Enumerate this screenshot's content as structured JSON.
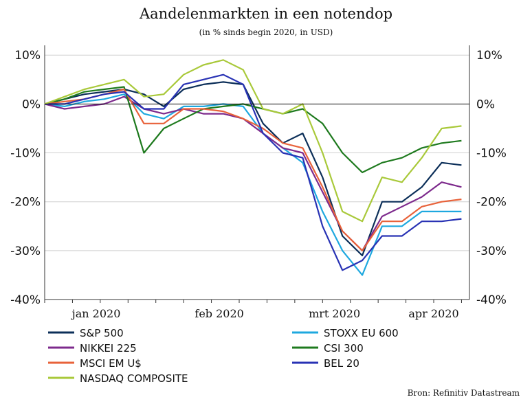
{
  "chart_data": {
    "type": "line",
    "title": "Aandelenmarkten in een notendop",
    "subtitle": "(in % sinds begin 2020, in USD)",
    "source": "Bron: Refinitiv Datastream",
    "ylim": [
      -40,
      12
    ],
    "yticks": [
      10,
      0,
      -10,
      -20,
      -30,
      -40
    ],
    "ytick_labels": [
      "10%",
      "0%",
      "-10%",
      "-20%",
      "-30%",
      "-40%"
    ],
    "xlim": [
      "2020-01-01",
      "2020-04-17"
    ],
    "xticks": [
      {
        "date": "2020-01-14",
        "label": "jan 2020"
      },
      {
        "date": "2020-02-14",
        "label": "feb 2020"
      },
      {
        "date": "2020-03-14",
        "label": "mrt 2020"
      },
      {
        "date": "2020-04-08",
        "label": "apr 2020"
      }
    ],
    "x": [
      "2020-01-01",
      "2020-01-06",
      "2020-01-11",
      "2020-01-16",
      "2020-01-21",
      "2020-01-26",
      "2020-01-31",
      "2020-02-05",
      "2020-02-10",
      "2020-02-15",
      "2020-02-20",
      "2020-02-25",
      "2020-03-01",
      "2020-03-06",
      "2020-03-11",
      "2020-03-16",
      "2020-03-21",
      "2020-03-26",
      "2020-03-31",
      "2020-04-05",
      "2020-04-10",
      "2020-04-15"
    ],
    "series": [
      {
        "name": "S&P 500",
        "color": "#0c2f59",
        "values": [
          0,
          1,
          2,
          2.5,
          3,
          2,
          -0.5,
          3,
          4,
          4.5,
          4,
          -4,
          -8,
          -6,
          -15,
          -27,
          -31,
          -20,
          -20,
          -17,
          -12,
          -12.5
        ]
      },
      {
        "name": "STOXX EU 600",
        "color": "#1ea8df",
        "values": [
          0,
          -0.5,
          0.5,
          1,
          2,
          -2,
          -3,
          -0.5,
          -0.5,
          0,
          -0.5,
          -6,
          -9,
          -12,
          -22,
          -30,
          -35,
          -25,
          -25,
          -22,
          -22,
          -22
        ]
      },
      {
        "name": "NIKKEI 225",
        "color": "#7d2a8c",
        "values": [
          0,
          -1,
          -0.5,
          0,
          1.5,
          -1,
          -2,
          -1,
          -2,
          -2,
          -3,
          -6,
          -9,
          -10,
          -18,
          -26,
          -30,
          -23,
          -21,
          -19,
          -16,
          -17
        ]
      },
      {
        "name": "CSI 300",
        "color": "#1e7a1e",
        "values": [
          0,
          1,
          2.5,
          3,
          3.5,
          -10,
          -5,
          -3,
          -1,
          -0.5,
          0,
          -1,
          -2,
          -1,
          -4,
          -10,
          -14,
          -12,
          -11,
          -9,
          -8,
          -7.5
        ]
      },
      {
        "name": "MSCI EM U$",
        "color": "#e8623a",
        "values": [
          0,
          0.5,
          1,
          2,
          3,
          -4,
          -4,
          -1,
          -1,
          -1.5,
          -3,
          -5,
          -8,
          -9,
          -17,
          -26,
          -30,
          -24,
          -24,
          -21,
          -20,
          -19.5
        ]
      },
      {
        "name": "BEL 20",
        "color": "#2832b4",
        "values": [
          0,
          0,
          1,
          2,
          2.5,
          -1,
          -1,
          4,
          5,
          6,
          4,
          -6,
          -10,
          -11,
          -25,
          -34,
          -32,
          -27,
          -27,
          -24,
          -24,
          -23.5
        ]
      },
      {
        "name": "NASDAQ COMPOSITE",
        "color": "#a9c93a",
        "values": [
          0,
          1.5,
          3,
          4,
          5,
          1.5,
          2,
          6,
          8,
          9,
          7,
          -1,
          -2,
          0,
          -10,
          -22,
          -24,
          -15,
          -16,
          -11,
          -5,
          -4.5
        ]
      }
    ],
    "legend_order": [
      "S&P 500",
      "STOXX EU 600",
      "NIKKEI 225",
      "CSI 300",
      "MSCI EM U$",
      "BEL 20",
      "NASDAQ COMPOSITE"
    ],
    "legend_placement": "bottom",
    "grid": "horizontal"
  }
}
